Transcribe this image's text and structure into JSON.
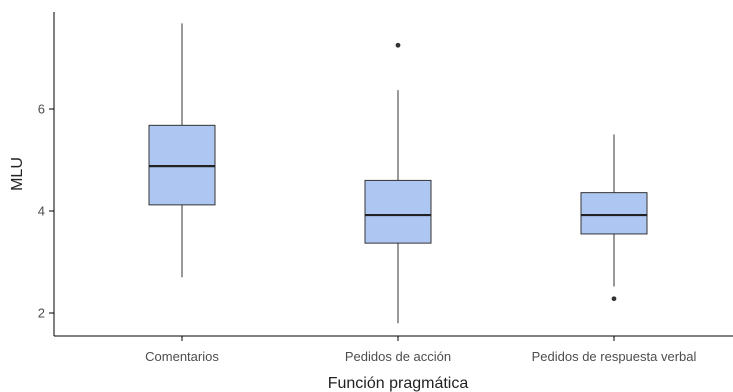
{
  "chart_data": {
    "type": "boxplot",
    "xlabel": "Función pragmática",
    "ylabel": "MLU",
    "categories": [
      "Comentarios",
      "Pedidos de acción",
      "Pedidos de respuesta verbal"
    ],
    "ylim": [
      1.6,
      7.95
    ],
    "yticks": [
      2,
      4,
      6
    ],
    "grid": false,
    "legend": "none",
    "boxes": [
      {
        "category": "Comentarios",
        "whisker_low": 2.7,
        "q1": 4.12,
        "median": 4.88,
        "q3": 5.68,
        "whisker_high": 7.68,
        "outliers": []
      },
      {
        "category": "Pedidos de acción",
        "whisker_low": 1.8,
        "q1": 3.37,
        "median": 3.92,
        "q3": 4.6,
        "whisker_high": 6.37,
        "outliers": [
          7.25
        ]
      },
      {
        "category": "Pedidos de respuesta verbal",
        "whisker_low": 2.52,
        "q1": 3.55,
        "median": 3.92,
        "q3": 4.36,
        "whisker_high": 5.5,
        "outliers": [
          2.28
        ]
      }
    ],
    "colors": {
      "box_fill": "#aec7f2",
      "box_stroke": "#333333",
      "median": "#222222",
      "axis": "#000000",
      "outlier": "#333333"
    }
  }
}
